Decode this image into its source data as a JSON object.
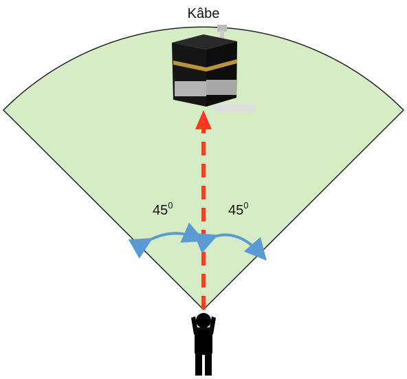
{
  "title": "Kâbe",
  "angles": [
    {
      "value": "45",
      "unit": "0"
    },
    {
      "value": "45",
      "unit": "0"
    }
  ]
}
